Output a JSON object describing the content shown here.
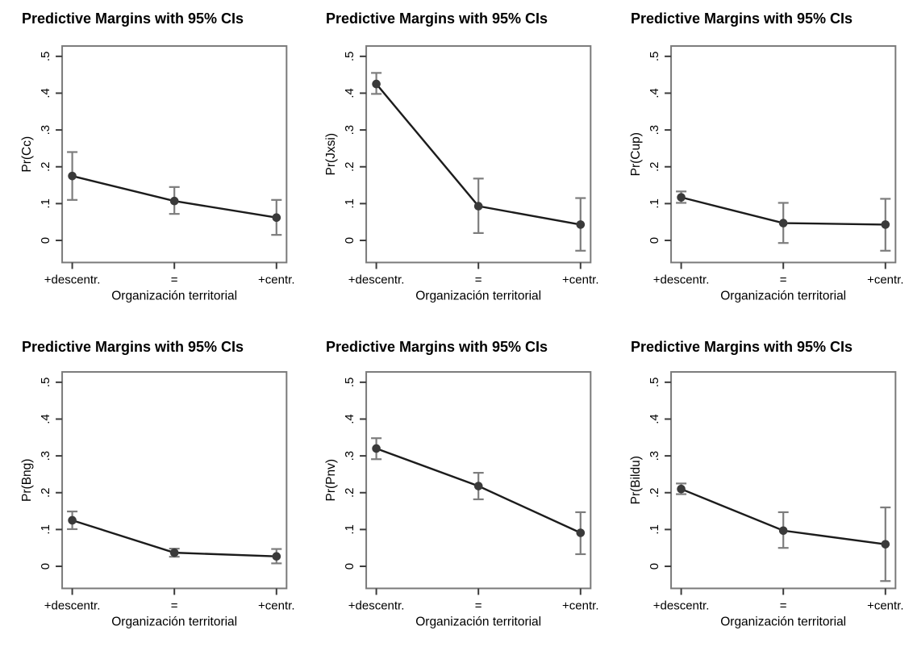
{
  "page": {
    "background": "#ffffff",
    "layout": "2x3 grid of predictive-margin plots"
  },
  "style": {
    "marker_color": "#3a3a3a",
    "line_color": "#1c1c1c",
    "ci_color": "#7d7d7d",
    "box_color": "#7a7a7a",
    "tick_color": "#3c3c3c",
    "text_color": "#000000"
  },
  "chart_data": [
    {
      "type": "line",
      "id": "pr-cc",
      "title": "Predictive Margins with 95% CIs",
      "ylabel": "Pr(Cc)",
      "xlabel": "Organización territorial",
      "categories": [
        "+descentr.",
        "=",
        "+centr."
      ],
      "values": [
        0.175,
        0.107,
        0.062
      ],
      "ci_low": [
        0.11,
        0.072,
        0.015
      ],
      "ci_high": [
        0.24,
        0.145,
        0.11
      ],
      "yticks": [
        0,
        0.1,
        0.2,
        0.3,
        0.4,
        0.5
      ],
      "ytick_labels": [
        "0",
        ".1",
        ".2",
        ".3",
        ".4",
        ".5"
      ],
      "ylim": [
        -0.06,
        0.528
      ],
      "legend": "none",
      "grid": false,
      "error_bars": "95% CI"
    },
    {
      "type": "line",
      "id": "pr-jxsi",
      "title": "Predictive Margins with 95% CIs",
      "ylabel": "Pr(Jxsi)",
      "xlabel": "Organización territorial",
      "categories": [
        "+descentr.",
        "=",
        "+centr."
      ],
      "values": [
        0.425,
        0.093,
        0.043
      ],
      "ci_low": [
        0.398,
        0.02,
        -0.028
      ],
      "ci_high": [
        0.455,
        0.168,
        0.115
      ],
      "yticks": [
        0,
        0.1,
        0.2,
        0.3,
        0.4,
        0.5
      ],
      "ytick_labels": [
        "0",
        ".1",
        ".2",
        ".3",
        ".4",
        ".5"
      ],
      "ylim": [
        -0.06,
        0.528
      ],
      "legend": "none",
      "grid": false,
      "error_bars": "95% CI"
    },
    {
      "type": "line",
      "id": "pr-cup",
      "title": "Predictive Margins with 95% CIs",
      "ylabel": "Pr(Cup)",
      "xlabel": "Organización territorial",
      "categories": [
        "+descentr.",
        "=",
        "+centr."
      ],
      "values": [
        0.117,
        0.047,
        0.043
      ],
      "ci_low": [
        0.102,
        -0.007,
        -0.028
      ],
      "ci_high": [
        0.133,
        0.102,
        0.113
      ],
      "yticks": [
        0,
        0.1,
        0.2,
        0.3,
        0.4,
        0.5
      ],
      "ytick_labels": [
        "0",
        ".1",
        ".2",
        ".3",
        ".4",
        ".5"
      ],
      "ylim": [
        -0.06,
        0.528
      ],
      "legend": "none",
      "grid": false,
      "error_bars": "95% CI"
    },
    {
      "type": "line",
      "id": "pr-bng",
      "title": "Predictive Margins with 95% CIs",
      "ylabel": "Pr(Bng)",
      "xlabel": "Organización territorial",
      "categories": [
        "+descentr.",
        "=",
        "+centr."
      ],
      "values": [
        0.125,
        0.037,
        0.027
      ],
      "ci_low": [
        0.101,
        0.026,
        0.008
      ],
      "ci_high": [
        0.149,
        0.048,
        0.047
      ],
      "yticks": [
        0,
        0.1,
        0.2,
        0.3,
        0.4,
        0.5
      ],
      "ytick_labels": [
        "0",
        ".1",
        ".2",
        ".3",
        ".4",
        ".5"
      ],
      "ylim": [
        -0.06,
        0.528
      ],
      "legend": "none",
      "grid": false,
      "error_bars": "95% CI"
    },
    {
      "type": "line",
      "id": "pr-pnv",
      "title": "Predictive Margins with 95% CIs",
      "ylabel": "Pr(Pnv)",
      "xlabel": "Organización territorial",
      "categories": [
        "+descentr.",
        "=",
        "+centr."
      ],
      "values": [
        0.32,
        0.218,
        0.091
      ],
      "ci_low": [
        0.291,
        0.182,
        0.033
      ],
      "ci_high": [
        0.348,
        0.254,
        0.147
      ],
      "yticks": [
        0,
        0.1,
        0.2,
        0.3,
        0.4,
        0.5
      ],
      "ytick_labels": [
        "0",
        ".1",
        ".2",
        ".3",
        ".4",
        ".5"
      ],
      "ylim": [
        -0.06,
        0.528
      ],
      "legend": "none",
      "grid": false,
      "error_bars": "95% CI"
    },
    {
      "type": "line",
      "id": "pr-bildu",
      "title": "Predictive Margins with 95% CIs",
      "ylabel": "Pr(Bildu)",
      "xlabel": "Organización territorial",
      "categories": [
        "+descentr.",
        "=",
        "+centr."
      ],
      "values": [
        0.21,
        0.097,
        0.06
      ],
      "ci_low": [
        0.196,
        0.05,
        -0.04
      ],
      "ci_high": [
        0.225,
        0.147,
        0.16
      ],
      "yticks": [
        0,
        0.1,
        0.2,
        0.3,
        0.4,
        0.5
      ],
      "ytick_labels": [
        "0",
        ".1",
        ".2",
        ".3",
        ".4",
        ".5"
      ],
      "ylim": [
        -0.06,
        0.528
      ],
      "legend": "none",
      "grid": false,
      "error_bars": "95% CI"
    }
  ]
}
